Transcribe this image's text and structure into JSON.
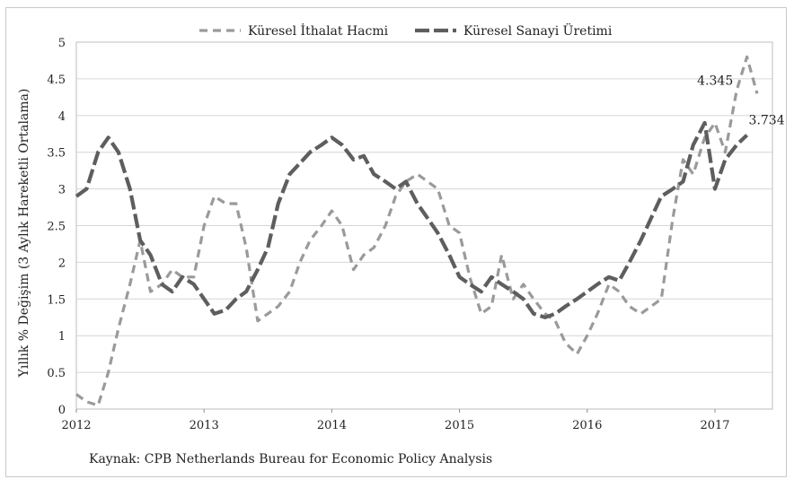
{
  "chart_data": {
    "type": "line",
    "ylabel": "Yıllık % Değişim (3 Aylık Hareketli Ortalama)",
    "source": "Kaynak: CPB Netherlands Bureau for  Economic Policy Analysis",
    "ylim": [
      0,
      5
    ],
    "y_ticks": [
      "0",
      "0.5",
      "1",
      "1.5",
      "2",
      "2.5",
      "3",
      "3.5",
      "4",
      "4.5",
      "5"
    ],
    "x_ticks": [
      "2012",
      "2013",
      "2014",
      "2015",
      "2016",
      "2017"
    ],
    "xlim": [
      2012,
      2017.45
    ],
    "grid": true,
    "legend_position": "top",
    "series": [
      {
        "name": "Küresel İthalat Hacmi",
        "style": "dashed-light",
        "color": "#9a9a9a",
        "points": [
          [
            2012.0,
            0.2
          ],
          [
            2012.08,
            0.1
          ],
          [
            2012.17,
            0.05
          ],
          [
            2012.25,
            0.5
          ],
          [
            2012.33,
            1.1
          ],
          [
            2012.42,
            1.7
          ],
          [
            2012.5,
            2.3
          ],
          [
            2012.58,
            1.6
          ],
          [
            2012.67,
            1.7
          ],
          [
            2012.75,
            1.9
          ],
          [
            2012.83,
            1.8
          ],
          [
            2012.92,
            1.8
          ],
          [
            2013.0,
            2.5
          ],
          [
            2013.08,
            2.9
          ],
          [
            2013.17,
            2.8
          ],
          [
            2013.25,
            2.8
          ],
          [
            2013.33,
            2.2
          ],
          [
            2013.42,
            1.2
          ],
          [
            2013.5,
            1.3
          ],
          [
            2013.58,
            1.4
          ],
          [
            2013.67,
            1.6
          ],
          [
            2013.75,
            2.0
          ],
          [
            2013.83,
            2.3
          ],
          [
            2013.92,
            2.5
          ],
          [
            2014.0,
            2.7
          ],
          [
            2014.08,
            2.5
          ],
          [
            2014.17,
            1.9
          ],
          [
            2014.25,
            2.1
          ],
          [
            2014.33,
            2.2
          ],
          [
            2014.42,
            2.5
          ],
          [
            2014.5,
            2.9
          ],
          [
            2014.58,
            3.1
          ],
          [
            2014.67,
            3.2
          ],
          [
            2014.75,
            3.1
          ],
          [
            2014.83,
            3.0
          ],
          [
            2014.92,
            2.5
          ],
          [
            2015.0,
            2.4
          ],
          [
            2015.08,
            1.8
          ],
          [
            2015.17,
            1.3
          ],
          [
            2015.25,
            1.4
          ],
          [
            2015.33,
            2.1
          ],
          [
            2015.42,
            1.5
          ],
          [
            2015.5,
            1.7
          ],
          [
            2015.58,
            1.5
          ],
          [
            2015.67,
            1.3
          ],
          [
            2015.75,
            1.2
          ],
          [
            2015.83,
            0.9
          ],
          [
            2015.92,
            0.75
          ],
          [
            2016.0,
            1.0
          ],
          [
            2016.08,
            1.3
          ],
          [
            2016.17,
            1.7
          ],
          [
            2016.25,
            1.6
          ],
          [
            2016.33,
            1.4
          ],
          [
            2016.42,
            1.3
          ],
          [
            2016.5,
            1.4
          ],
          [
            2016.58,
            1.5
          ],
          [
            2016.67,
            2.6
          ],
          [
            2016.75,
            3.4
          ],
          [
            2016.83,
            3.2
          ],
          [
            2016.92,
            3.7
          ],
          [
            2017.0,
            3.9
          ],
          [
            2017.08,
            3.5
          ],
          [
            2017.17,
            4.345
          ],
          [
            2017.25,
            4.8
          ],
          [
            2017.33,
            4.3
          ]
        ]
      },
      {
        "name": "Küresel Sanayi Üretimi",
        "style": "dashed-heavy",
        "color": "#5e5e5e",
        "points": [
          [
            2012.0,
            2.9
          ],
          [
            2012.08,
            3.0
          ],
          [
            2012.17,
            3.5
          ],
          [
            2012.25,
            3.7
          ],
          [
            2012.33,
            3.5
          ],
          [
            2012.42,
            3.0
          ],
          [
            2012.5,
            2.3
          ],
          [
            2012.58,
            2.1
          ],
          [
            2012.67,
            1.7
          ],
          [
            2012.75,
            1.6
          ],
          [
            2012.83,
            1.8
          ],
          [
            2012.92,
            1.7
          ],
          [
            2013.0,
            1.5
          ],
          [
            2013.08,
            1.3
          ],
          [
            2013.17,
            1.35
          ],
          [
            2013.25,
            1.5
          ],
          [
            2013.33,
            1.6
          ],
          [
            2013.42,
            1.9
          ],
          [
            2013.5,
            2.2
          ],
          [
            2013.58,
            2.8
          ],
          [
            2013.67,
            3.2
          ],
          [
            2013.75,
            3.35
          ],
          [
            2013.83,
            3.5
          ],
          [
            2013.92,
            3.6
          ],
          [
            2014.0,
            3.7
          ],
          [
            2014.08,
            3.6
          ],
          [
            2014.17,
            3.4
          ],
          [
            2014.25,
            3.45
          ],
          [
            2014.33,
            3.2
          ],
          [
            2014.42,
            3.1
          ],
          [
            2014.5,
            3.0
          ],
          [
            2014.58,
            3.1
          ],
          [
            2014.67,
            2.8
          ],
          [
            2014.75,
            2.6
          ],
          [
            2014.83,
            2.4
          ],
          [
            2014.92,
            2.1
          ],
          [
            2015.0,
            1.8
          ],
          [
            2015.08,
            1.7
          ],
          [
            2015.17,
            1.6
          ],
          [
            2015.25,
            1.8
          ],
          [
            2015.33,
            1.7
          ],
          [
            2015.42,
            1.6
          ],
          [
            2015.5,
            1.5
          ],
          [
            2015.58,
            1.3
          ],
          [
            2015.67,
            1.25
          ],
          [
            2015.75,
            1.3
          ],
          [
            2015.83,
            1.4
          ],
          [
            2015.92,
            1.5
          ],
          [
            2016.0,
            1.6
          ],
          [
            2016.08,
            1.7
          ],
          [
            2016.17,
            1.8
          ],
          [
            2016.25,
            1.75
          ],
          [
            2016.33,
            2.0
          ],
          [
            2016.42,
            2.3
          ],
          [
            2016.5,
            2.6
          ],
          [
            2016.58,
            2.9
          ],
          [
            2016.67,
            3.0
          ],
          [
            2016.75,
            3.1
          ],
          [
            2016.83,
            3.6
          ],
          [
            2016.92,
            3.9
          ],
          [
            2017.0,
            3.0
          ],
          [
            2017.08,
            3.4
          ],
          [
            2017.17,
            3.6
          ],
          [
            2017.25,
            3.734
          ]
        ]
      }
    ],
    "annotations": [
      {
        "text": "4.345",
        "x": 2017.17,
        "y": 4.345
      },
      {
        "text": "3.734",
        "x": 2017.25,
        "y": 3.734
      }
    ]
  }
}
